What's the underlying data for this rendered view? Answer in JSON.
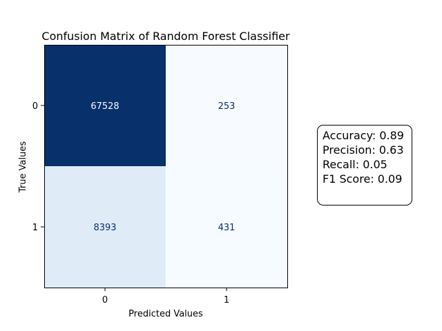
{
  "chart_data": {
    "type": "heatmap",
    "title": "Confusion Matrix of Random Forest Classifier",
    "xlabel": "Predicted Values",
    "ylabel": "True Values",
    "x_ticks": [
      "0",
      "1"
    ],
    "y_ticks": [
      "0",
      "1"
    ],
    "matrix": [
      [
        67528,
        253
      ],
      [
        8393,
        431
      ]
    ],
    "colormap": "Blues",
    "colorbar": false
  },
  "metrics": {
    "lines": [
      "Accuracy: 0.89",
      "Precision: 0.63",
      "Recall: 0.05",
      "F1 Score: 0.09"
    ]
  }
}
